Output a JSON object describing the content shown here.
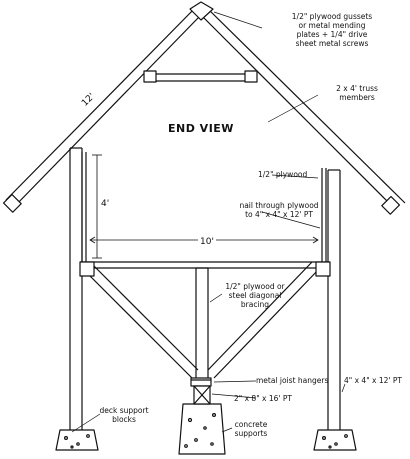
{
  "title": "END VIEW",
  "dimensions": {
    "rafter_length": "12'",
    "wall_height": "4'",
    "width": "10'"
  },
  "labels": {
    "gussets_line1": "1/2\" plywood gussets",
    "gussets_line2": "or metal mending",
    "gussets_line3": "plates + 1/4\" drive",
    "gussets_line4": "sheet metal screws",
    "truss_line1": "2 x 4' truss",
    "truss_line2": "members",
    "plywood": "1/2\" plywood",
    "nail_line1": "nail through plywood",
    "nail_line2": "to 4\" x 4\" x 12' PT",
    "bracing_line1": "1/2\" plywood or",
    "bracing_line2": "steel diagonal",
    "bracing_line3": "bracing",
    "hangers": "metal joist hangers",
    "joist": "2\" x 8\" x 16' PT",
    "post": "4\" x 4\" x 12' PT",
    "deck_line1": "deck support",
    "deck_line2": "blocks",
    "concrete_line1": "concrete",
    "concrete_line2": "supports"
  }
}
